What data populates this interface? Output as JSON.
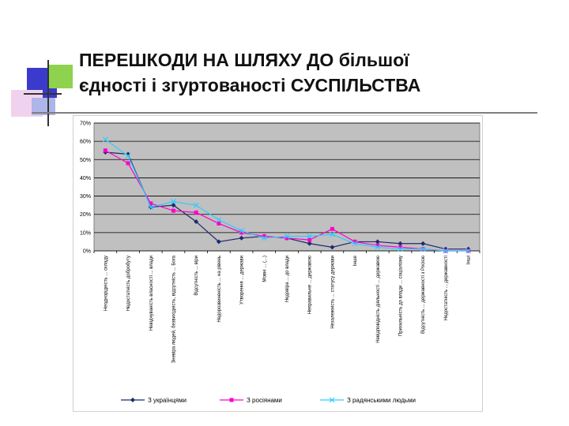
{
  "slide": {
    "title_line1": "ПЕРЕШКОДИ НА ШЛЯХУ ДО більшої",
    "title_line2": "єдності і згуртованості СУСПІЛЬСТВА"
  },
  "chart_data": {
    "type": "line",
    "title": "",
    "xlabel": "",
    "ylabel": "",
    "ylim": [
      0,
      70
    ],
    "yticks": [
      "0%",
      "10%",
      "20%",
      "30%",
      "40%",
      "50%",
      "60%",
      "70%"
    ],
    "grid": true,
    "legend_position": "bottom",
    "categories": [
      "Неоднорідність ... складу",
      "Недостатність добробуту",
      "Невідчуваність власності ... влади",
      "Зневіра людей, безвихідність, відсутність ... Бога",
      "Відсутність ... віри",
      "Недорозвиненість ... на рівень",
      "Утворення ... держави",
      "Мовні ... (...)",
      "Недовіра ... до влади",
      "Неправильне ... державою",
      "Незалежність ... статусу держави",
      "Інше",
      "Невідповідність діяльності ... державою",
      "Прихильність до влади ... соціалізму",
      "Відсутність ... державності з Росією",
      "Недостатність ... державності",
      "Інші"
    ],
    "series": [
      {
        "name": "З українцями",
        "color": "#1f2a6b",
        "marker": "diamond",
        "values": [
          54,
          53,
          24,
          25,
          16,
          5,
          7,
          8,
          7,
          4,
          2,
          5,
          5,
          4,
          4,
          1,
          1
        ]
      },
      {
        "name": "З росіянами",
        "color": "#ff00cc",
        "marker": "square",
        "values": [
          55,
          48,
          26,
          22,
          21,
          15,
          10,
          8,
          7,
          6,
          12,
          5,
          3,
          2,
          1,
          0,
          0
        ]
      },
      {
        "name": "З радянськими людьми",
        "color": "#33ccff",
        "marker": "x",
        "values": [
          61,
          52,
          24,
          27,
          25,
          17,
          11,
          7,
          8,
          8,
          9,
          4,
          2,
          1,
          1,
          0,
          0
        ]
      }
    ]
  }
}
